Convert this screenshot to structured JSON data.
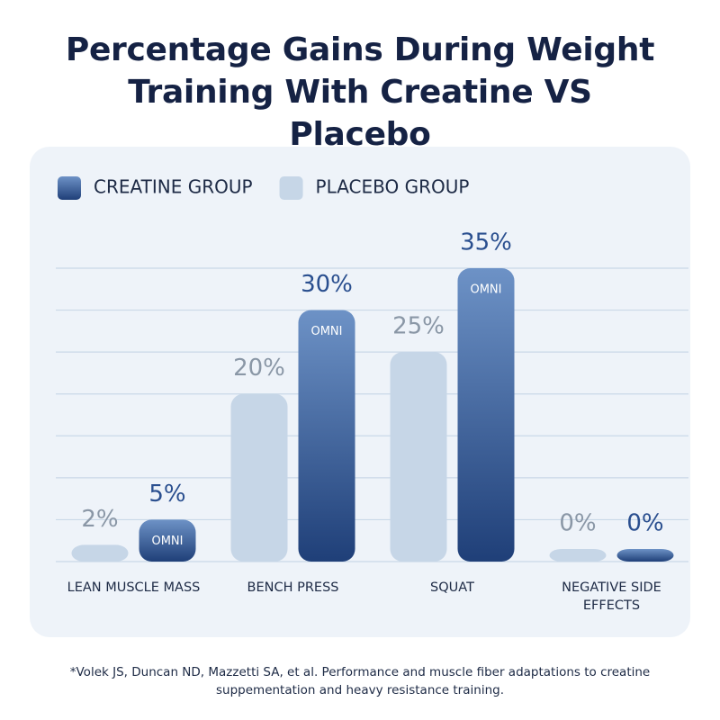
{
  "chart_data": {
    "type": "bar",
    "title": "Percentage Gains During Weight Training With Creatine VS Placebo",
    "categories": [
      "LEAN MUSCLE MASS",
      "BENCH PRESS",
      "SQUAT",
      "NEGATIVE SIDE EFFECTS"
    ],
    "series": [
      {
        "name": "CREATINE GROUP",
        "color": "#1f3f78",
        "values": [
          5,
          30,
          35,
          0
        ],
        "value_labels": [
          "5%",
          "30%",
          "35%",
          "0%"
        ],
        "bar_label": "OMNI",
        "label_color": "#2a4f8f"
      },
      {
        "name": "PLACEBO GROUP",
        "color": "#c6d6e7",
        "values": [
          2,
          20,
          25,
          0
        ],
        "value_labels": [
          "2%",
          "20%",
          "25%",
          "0%"
        ],
        "label_color": "#8a97a6"
      }
    ],
    "ylim": [
      0,
      35
    ],
    "yticks": [
      0,
      5,
      10,
      15,
      20,
      25,
      30,
      35
    ],
    "grid": true,
    "footnote": "*Volek JS, Duncan ND, Mazzetti SA, et al. Performance and muscle fiber adaptations to creatine suppementation and heavy resistance training."
  }
}
